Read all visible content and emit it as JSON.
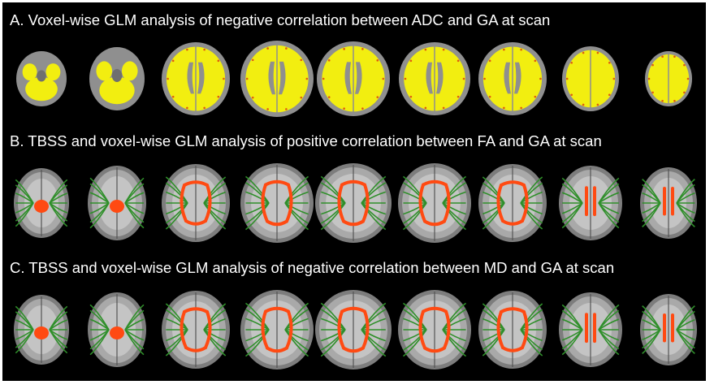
{
  "panels": {
    "a": {
      "title": "A. Voxel-wise GLM analysis of negative correlation between ADC and GA at scan"
    },
    "b": {
      "title": "B. TBSS and voxel-wise GLM analysis of positive correlation between FA and GA at scan"
    },
    "c": {
      "title": "C. TBSS and voxel-wise GLM analysis of negative correlation between MD and GA at scan"
    }
  },
  "colors": {
    "background": "#000000",
    "title_text": "#ffffff",
    "adc_overlay": "#f2ee10",
    "adc_overlay_edge": "#e05a10",
    "brain_gray": "#8f8f8f",
    "tbss_skeleton": "#2f8f2a",
    "significant": "#ff4a12"
  },
  "slices_per_row": 9
}
